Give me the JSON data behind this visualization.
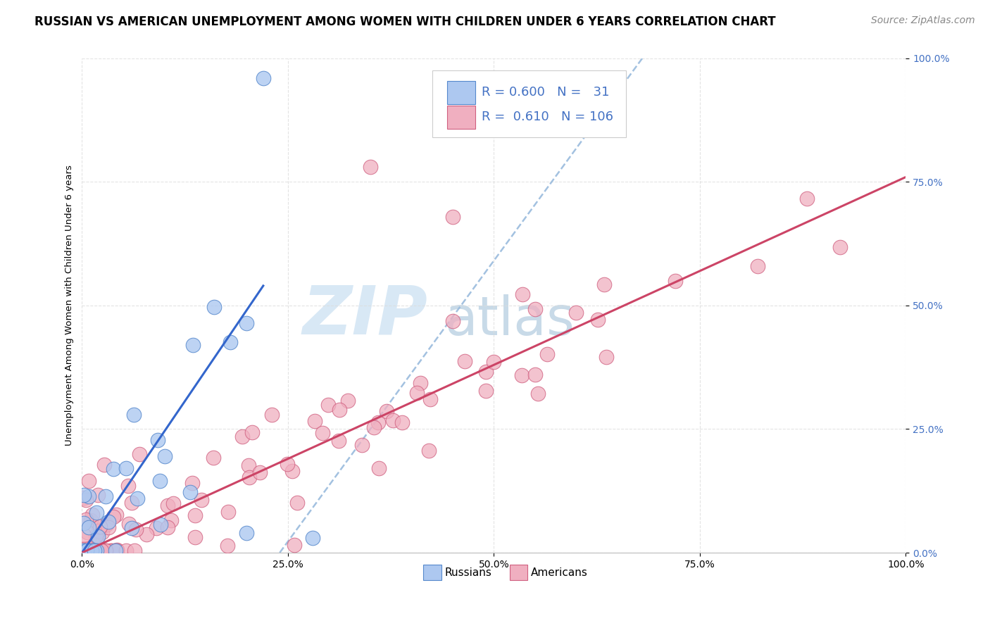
{
  "title": "RUSSIAN VS AMERICAN UNEMPLOYMENT AMONG WOMEN WITH CHILDREN UNDER 6 YEARS CORRELATION CHART",
  "source": "Source: ZipAtlas.com",
  "ylabel": "Unemployment Among Women with Children Under 6 years",
  "xlim": [
    0,
    1
  ],
  "ylim": [
    0,
    1
  ],
  "xticks": [
    0.0,
    0.25,
    0.5,
    0.75,
    1.0
  ],
  "xtick_labels": [
    "0.0%",
    "25.0%",
    "50.0%",
    "75.0%",
    "100.0%"
  ],
  "yticks": [
    0.0,
    0.25,
    0.5,
    0.75,
    1.0
  ],
  "ytick_labels": [
    "0.0%",
    "25.0%",
    "50.0%",
    "75.0%",
    "100.0%"
  ],
  "R_russian": 0.6,
  "N_russian": 31,
  "R_american": 0.61,
  "N_american": 106,
  "russian_fill": "#adc8f0",
  "russian_edge": "#5588cc",
  "american_fill": "#f0afc0",
  "american_edge": "#d06080",
  "russian_line_color": "#3366cc",
  "american_line_color": "#cc4466",
  "dashed_line_color": "#99bbdd",
  "background_color": "#ffffff",
  "grid_color": "#dddddd",
  "watermark_zip_color": "#d8e8f5",
  "watermark_atlas_color": "#c8dae8",
  "ytick_color": "#4472c4",
  "title_fontsize": 12,
  "source_fontsize": 10,
  "label_fontsize": 9.5,
  "tick_fontsize": 10,
  "legend_fontsize": 13
}
